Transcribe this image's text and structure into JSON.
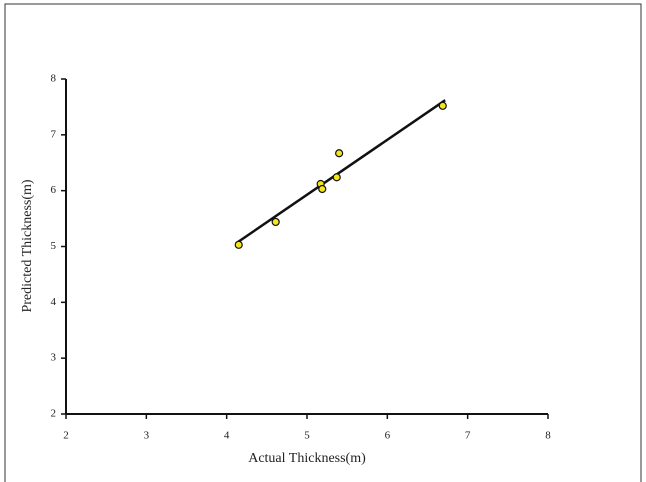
{
  "chart_data": {
    "type": "scatter",
    "x_label": "Actual Thickness(m)",
    "y_label": "Predicted Thickness(m)",
    "series": [
      {
        "x": [
          4.15,
          4.61,
          5.17,
          5.19,
          5.37,
          5.4,
          6.69
        ],
        "values": [
          5.03,
          5.44,
          6.12,
          6.03,
          6.24,
          6.67,
          7.52
        ],
        "color": "#f5e61a"
      }
    ],
    "trendline": {
      "x": [
        4.12,
        6.72
      ],
      "values": [
        5.06,
        7.62
      ],
      "color": "#111111"
    },
    "xlim": [
      2,
      8
    ],
    "ylim": [
      2,
      8
    ],
    "xticks": [
      2,
      3,
      4,
      5,
      6,
      7,
      8
    ],
    "yticks": [
      2,
      3,
      4,
      5,
      6,
      7,
      8
    ]
  }
}
